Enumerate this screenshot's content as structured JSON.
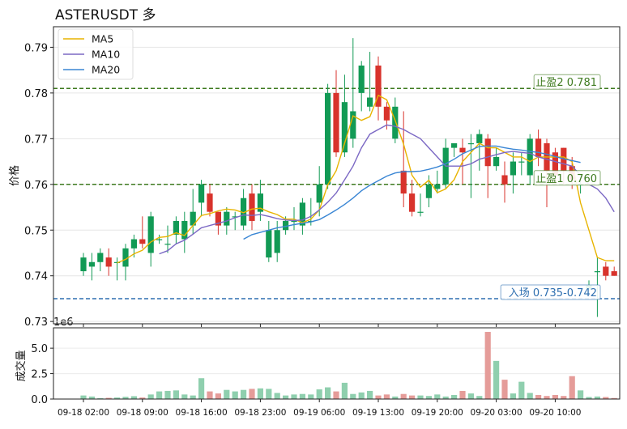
{
  "chart_data": [
    {
      "type": "candlestick",
      "title": "ASTERUSDT  多",
      "xlabel": "",
      "ylabel": "价格",
      "ylim": [
        0.7295,
        0.7945
      ],
      "y_ticks": [
        0.73,
        0.74,
        0.75,
        0.76,
        0.77,
        0.78,
        0.79
      ],
      "x_tick_labels": [
        "09-18 02:00",
        "09-18 09:00",
        "09-18 16:00",
        "09-18 23:00",
        "09-19 06:00",
        "09-19 13:00",
        "09-19 20:00",
        "09-20 03:00",
        "09-20 10:00"
      ],
      "grid": true,
      "legend_position": "top-left",
      "candles": {
        "open": [
          0.741,
          0.742,
          0.743,
          0.744,
          0.743,
          0.742,
          0.746,
          0.748,
          0.745,
          0.748,
          0.747,
          0.749,
          0.748,
          0.751,
          0.756,
          0.758,
          0.754,
          0.751,
          0.753,
          0.751,
          0.758,
          0.754,
          0.744,
          0.745,
          0.75,
          0.752,
          0.751,
          0.752,
          0.756,
          0.76,
          0.78,
          0.767,
          0.77,
          0.78,
          0.777,
          0.786,
          0.777,
          0.77,
          0.763,
          0.758,
          0.754,
          0.757,
          0.759,
          0.76,
          0.768,
          0.768,
          0.769,
          0.769,
          0.77,
          0.764,
          0.762,
          0.762,
          0.765,
          0.762,
          0.77,
          0.769,
          0.767,
          0.768,
          0.764,
          0.76,
          0.737,
          0.741,
          0.742,
          0.741
        ],
        "close": [
          0.744,
          0.743,
          0.745,
          0.742,
          0.743,
          0.746,
          0.748,
          0.747,
          0.753,
          0.748,
          0.747,
          0.752,
          0.752,
          0.754,
          0.76,
          0.754,
          0.751,
          0.754,
          0.753,
          0.757,
          0.752,
          0.758,
          0.75,
          0.75,
          0.752,
          0.752,
          0.756,
          0.752,
          0.76,
          0.78,
          0.767,
          0.778,
          0.776,
          0.786,
          0.779,
          0.777,
          0.774,
          0.777,
          0.758,
          0.754,
          0.754,
          0.76,
          0.76,
          0.768,
          0.769,
          0.767,
          0.769,
          0.771,
          0.764,
          0.766,
          0.76,
          0.765,
          0.765,
          0.77,
          0.766,
          0.763,
          0.762,
          0.763,
          0.761,
          0.76,
          0.738,
          0.741,
          0.74,
          0.74
        ],
        "high": [
          0.745,
          0.745,
          0.746,
          0.746,
          0.744,
          0.747,
          0.749,
          0.753,
          0.754,
          0.749,
          0.751,
          0.753,
          0.754,
          0.759,
          0.761,
          0.76,
          0.754,
          0.755,
          0.754,
          0.759,
          0.76,
          0.761,
          0.752,
          0.752,
          0.753,
          0.755,
          0.757,
          0.757,
          0.764,
          0.782,
          0.785,
          0.784,
          0.792,
          0.787,
          0.789,
          0.788,
          0.778,
          0.779,
          0.776,
          0.761,
          0.758,
          0.762,
          0.763,
          0.77,
          0.769,
          0.77,
          0.771,
          0.772,
          0.771,
          0.768,
          0.765,
          0.767,
          0.767,
          0.771,
          0.772,
          0.77,
          0.768,
          0.768,
          0.766,
          0.761,
          0.739,
          0.744,
          0.743,
          0.742
        ],
        "low": [
          0.74,
          0.739,
          0.741,
          0.74,
          0.739,
          0.739,
          0.744,
          0.746,
          0.742,
          0.747,
          0.745,
          0.747,
          0.745,
          0.749,
          0.753,
          0.753,
          0.749,
          0.749,
          0.75,
          0.75,
          0.75,
          0.752,
          0.743,
          0.743,
          0.749,
          0.75,
          0.749,
          0.751,
          0.753,
          0.759,
          0.766,
          0.766,
          0.768,
          0.776,
          0.776,
          0.774,
          0.772,
          0.769,
          0.755,
          0.753,
          0.753,
          0.755,
          0.758,
          0.759,
          0.766,
          0.76,
          0.757,
          0.763,
          0.757,
          0.763,
          0.756,
          0.758,
          0.762,
          0.76,
          0.764,
          0.755,
          0.76,
          0.76,
          0.759,
          0.758,
          0.737,
          0.731,
          0.739,
          0.74
        ]
      },
      "series": [
        {
          "name": "MA5",
          "color": "#e8b400",
          "values": [
            null,
            null,
            null,
            null,
            0.7428,
            0.7436,
            0.7448,
            0.7456,
            0.7474,
            0.7484,
            0.7486,
            0.7494,
            0.7488,
            0.751,
            0.7532,
            0.7536,
            0.7542,
            0.7546,
            0.7544,
            0.7538,
            0.7546,
            0.7548,
            0.754,
            0.7534,
            0.7524,
            0.7524,
            0.7516,
            0.7524,
            0.7544,
            0.7599,
            0.763,
            0.769,
            0.775,
            0.774,
            0.7748,
            0.7795,
            0.7785,
            0.774,
            0.7688,
            0.762,
            0.7594,
            0.7609,
            0.7582,
            0.759,
            0.761,
            0.765,
            0.767,
            0.769,
            0.768,
            0.768,
            0.767,
            0.766,
            0.766,
            0.765,
            0.766,
            0.766,
            0.766,
            0.766,
            0.765,
            0.756,
            0.75,
            0.744,
            0.7433,
            0.7433
          ]
        },
        {
          "name": "MA10",
          "color": "#7b68c4",
          "values": [
            null,
            null,
            null,
            null,
            null,
            null,
            null,
            null,
            null,
            0.7448,
            0.7455,
            0.747,
            0.7478,
            0.7491,
            0.7505,
            0.751,
            0.7515,
            0.752,
            0.7527,
            0.7533,
            0.7532,
            0.7534,
            0.753,
            0.7525,
            0.7522,
            0.7521,
            0.7522,
            0.753,
            0.7544,
            0.7561,
            0.7581,
            0.761,
            0.764,
            0.768,
            0.771,
            0.772,
            0.773,
            0.7727,
            0.772,
            0.771,
            0.77,
            0.768,
            0.766,
            0.764,
            0.764,
            0.764,
            0.7645,
            0.7655,
            0.766,
            0.7665,
            0.767,
            0.7672,
            0.767,
            0.7668,
            0.766,
            0.7655,
            0.765,
            0.7645,
            0.764,
            0.762,
            0.76,
            0.759,
            0.757,
            0.754
          ]
        },
        {
          "name": "MA20",
          "color": "#3a86d4",
          "values": [
            null,
            null,
            null,
            null,
            null,
            null,
            null,
            null,
            null,
            null,
            null,
            null,
            null,
            null,
            null,
            null,
            null,
            null,
            null,
            0.748,
            0.749,
            0.7495,
            0.75,
            0.7505,
            0.7508,
            0.7512,
            0.7515,
            0.7518,
            0.7523,
            0.7533,
            0.7544,
            0.7556,
            0.757,
            0.7586,
            0.7598,
            0.7608,
            0.7618,
            0.7625,
            0.7628,
            0.7628,
            0.7629,
            0.7633,
            0.7638,
            0.7645,
            0.7655,
            0.7667,
            0.7675,
            0.7683,
            0.7684,
            0.7684,
            0.768,
            0.7677,
            0.7675,
            0.7672,
            0.767,
            0.7666,
            0.7661,
            0.7656,
            0.7652,
            0.7648,
            null,
            null,
            null,
            null
          ]
        }
      ],
      "hlines": [
        {
          "label": "止盈2 0.781",
          "value": 0.781,
          "color": "#3d7a1e"
        },
        {
          "label": "止盈1 0.760",
          "value": 0.76,
          "color": "#3d7a1e"
        },
        {
          "label": "入场 0.735-0.742",
          "value": 0.735,
          "color": "#2e6fb0"
        }
      ],
      "up_color": "#129a55",
      "down_color": "#d8332c"
    },
    {
      "type": "bar",
      "ylabel": "成交量",
      "y_scale_label": "1e6",
      "ylim": [
        0,
        7
      ],
      "y_ticks": [
        0.0,
        2.5,
        5.0
      ],
      "values": [
        0.35,
        0.25,
        0.08,
        0.12,
        0.15,
        0.22,
        0.28,
        0.15,
        0.45,
        0.75,
        0.8,
        0.85,
        0.45,
        0.35,
        2.05,
        0.75,
        0.55,
        0.9,
        0.75,
        0.9,
        1.0,
        1.05,
        1.0,
        0.6,
        0.35,
        0.45,
        0.5,
        0.45,
        0.95,
        1.15,
        0.75,
        1.6,
        0.5,
        0.65,
        0.8,
        0.35,
        0.45,
        0.25,
        0.5,
        0.35,
        0.35,
        0.3,
        0.45,
        0.25,
        0.4,
        0.8,
        0.55,
        0.3,
        6.6,
        3.75,
        1.9,
        0.55,
        1.7,
        0.6,
        0.4,
        0.3,
        0.4,
        0.3,
        2.25,
        0.85,
        0.2,
        0.25,
        0.2,
        0.1
      ]
    }
  ]
}
